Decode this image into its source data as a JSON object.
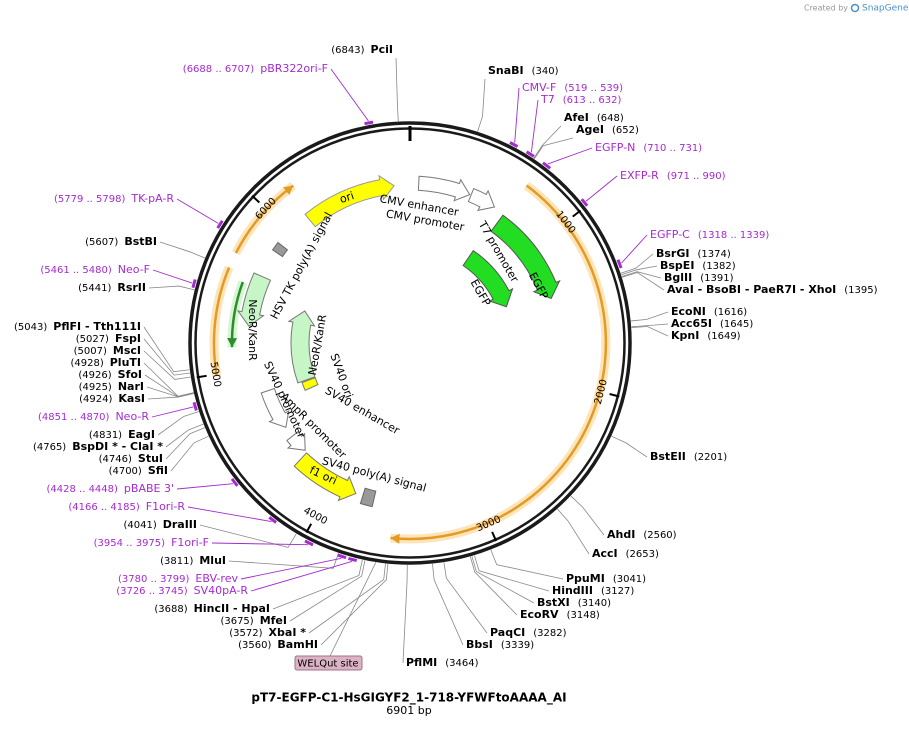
{
  "credit": {
    "created_by": "Created by",
    "brand": "SnapGene"
  },
  "plasmid": {
    "name": "pT7-EGFP-C1-HsGIGYF2_1-718-YFWFtoAAAA_AI",
    "length": {
      "value": 6901,
      "label": "6901 bp"
    }
  },
  "ticks": [
    1000,
    2000,
    3000,
    4000,
    5000,
    6000
  ],
  "site_tag": "WELQut site",
  "enzymes": [
    {
      "name": "PciI",
      "site": {
        "value": 6843,
        "label": "(6843)"
      }
    },
    {
      "name": "SnaBI",
      "site": {
        "value": 340,
        "label": "(340)"
      }
    },
    {
      "name": "AfeI",
      "site": {
        "value": 648,
        "label": "(648)"
      }
    },
    {
      "name": "AgeI",
      "site": {
        "value": 652,
        "label": "(652)"
      }
    },
    {
      "name": "BsrGI",
      "site": {
        "value": 1374,
        "label": "(1374)"
      }
    },
    {
      "name": "BspEI",
      "site": {
        "value": 1382,
        "label": "(1382)"
      }
    },
    {
      "name": "BglII",
      "site": {
        "value": 1391,
        "label": "(1391)"
      }
    },
    {
      "name": "AvaI - BsoBI - PaeR7I - XhoI",
      "site": {
        "value": 1395,
        "label": "(1395)"
      }
    },
    {
      "name": "EcoNI",
      "site": {
        "value": 1616,
        "label": "(1616)"
      }
    },
    {
      "name": "Acc65I",
      "site": {
        "value": 1645,
        "label": "(1645)"
      }
    },
    {
      "name": "KpnI",
      "site": {
        "value": 1649,
        "label": "(1649)"
      }
    },
    {
      "name": "BstEII",
      "site": {
        "value": 2201,
        "label": "(2201)"
      }
    },
    {
      "name": "AhdI",
      "site": {
        "value": 2560,
        "label": "(2560)"
      }
    },
    {
      "name": "AccI",
      "site": {
        "value": 2653,
        "label": "(2653)"
      }
    },
    {
      "name": "PpuMI",
      "site": {
        "value": 3041,
        "label": "(3041)"
      }
    },
    {
      "name": "HindIII",
      "site": {
        "value": 3127,
        "label": "(3127)"
      }
    },
    {
      "name": "BstXI",
      "site": {
        "value": 3140,
        "label": "(3140)"
      }
    },
    {
      "name": "EcoRV",
      "site": {
        "value": 3148,
        "label": "(3148)"
      }
    },
    {
      "name": "PaqCI",
      "site": {
        "value": 3282,
        "label": "(3282)"
      }
    },
    {
      "name": "BbsI",
      "site": {
        "value": 3339,
        "label": "(3339)"
      }
    },
    {
      "name": "PflMI",
      "site": {
        "value": 3464,
        "label": "(3464)"
      }
    },
    {
      "name": "MluI",
      "site": {
        "value": 3811,
        "label": "(3811)"
      }
    },
    {
      "name": "HincII - HpaI",
      "site": {
        "value": 3688,
        "label": "(3688)"
      }
    },
    {
      "name": "MfeI",
      "site": {
        "value": 3675,
        "label": "(3675)"
      }
    },
    {
      "name": "XbaI *",
      "site": {
        "value": 3572,
        "label": "(3572)"
      }
    },
    {
      "name": "BamHI",
      "site": {
        "value": 3560,
        "label": "(3560)"
      }
    },
    {
      "name": "DraIII",
      "site": {
        "value": 4041,
        "label": "(4041)"
      }
    },
    {
      "name": "SfiI",
      "site": {
        "value": 4700,
        "label": "(4700)"
      }
    },
    {
      "name": "StuI",
      "site": {
        "value": 4746,
        "label": "(4746)"
      }
    },
    {
      "name": "BspDI * - ClaI *",
      "site": {
        "value": 4765,
        "label": "(4765)"
      }
    },
    {
      "name": "EagI",
      "site": {
        "value": 4831,
        "label": "(4831)"
      }
    },
    {
      "name": "KasI",
      "site": {
        "value": 4924,
        "label": "(4924)"
      }
    },
    {
      "name": "NarI",
      "site": {
        "value": 4925,
        "label": "(4925)"
      }
    },
    {
      "name": "SfoI",
      "site": {
        "value": 4926,
        "label": "(4926)"
      }
    },
    {
      "name": "PluTI",
      "site": {
        "value": 4928,
        "label": "(4928)"
      }
    },
    {
      "name": "MscI",
      "site": {
        "value": 5007,
        "label": "(5007)"
      }
    },
    {
      "name": "FspI",
      "site": {
        "value": 5027,
        "label": "(5027)"
      }
    },
    {
      "name": "PflFI - Tth111I",
      "site": {
        "value": 5043,
        "label": "(5043)"
      }
    },
    {
      "name": "RsrII",
      "site": {
        "value": 5441,
        "label": "(5441)"
      }
    },
    {
      "name": "BstBI",
      "site": {
        "value": 5607,
        "label": "(5607)"
      }
    }
  ],
  "primers": [
    {
      "name": "pBR322ori-F",
      "range": {
        "start": 6688,
        "end": 6707,
        "label": "(6688 .. 6707)"
      }
    },
    {
      "name": "CMV-F",
      "range": {
        "start": 519,
        "end": 539,
        "label": "(519 .. 539)"
      }
    },
    {
      "name": "T7",
      "range": {
        "start": 613,
        "end": 632,
        "label": "(613 .. 632)"
      }
    },
    {
      "name": "EGFP-N",
      "range": {
        "start": 710,
        "end": 731,
        "label": "(710 .. 731)"
      }
    },
    {
      "name": "EXFP-R",
      "range": {
        "start": 971,
        "end": 990,
        "label": "(971 .. 990)"
      }
    },
    {
      "name": "EGFP-C",
      "range": {
        "start": 1318,
        "end": 1339,
        "label": "(1318 .. 1339)"
      }
    },
    {
      "name": "TK-pA-R",
      "range": {
        "start": 5779,
        "end": 5798,
        "label": "(5779 .. 5798)"
      }
    },
    {
      "name": "Neo-F",
      "range": {
        "start": 5461,
        "end": 5480,
        "label": "(5461 .. 5480)"
      }
    },
    {
      "name": "Neo-R",
      "range": {
        "start": 4851,
        "end": 4870,
        "label": "(4851 .. 4870)"
      }
    },
    {
      "name": "pBABE 3'",
      "range": {
        "start": 4428,
        "end": 4448,
        "label": "(4428 .. 4448)"
      }
    },
    {
      "name": "F1ori-R",
      "range": {
        "start": 4166,
        "end": 4185,
        "label": "(4166 .. 4185)"
      }
    },
    {
      "name": "F1ori-F",
      "range": {
        "start": 3954,
        "end": 3975,
        "label": "(3954 .. 3975)"
      }
    },
    {
      "name": "EBV-rev",
      "range": {
        "start": 3780,
        "end": 3799,
        "label": "(3780 .. 3799)"
      }
    },
    {
      "name": "SV40pA-R",
      "range": {
        "start": 3726,
        "end": 3745,
        "label": "(3726 .. 3745)"
      }
    }
  ],
  "feature_labels": [
    "ori",
    "CMV enhancer",
    "CMV promoter",
    "T7 promoter",
    "EGFP",
    "EGFP",
    "HSV TK poly(A) signal",
    "NeoR/KanR",
    "NeoR/KanR",
    "SV40 ori",
    "SV40 enhancer",
    "SV40 promoter",
    "AmpR promoter",
    "SV40 poly(A) signal",
    "f1 ori"
  ]
}
